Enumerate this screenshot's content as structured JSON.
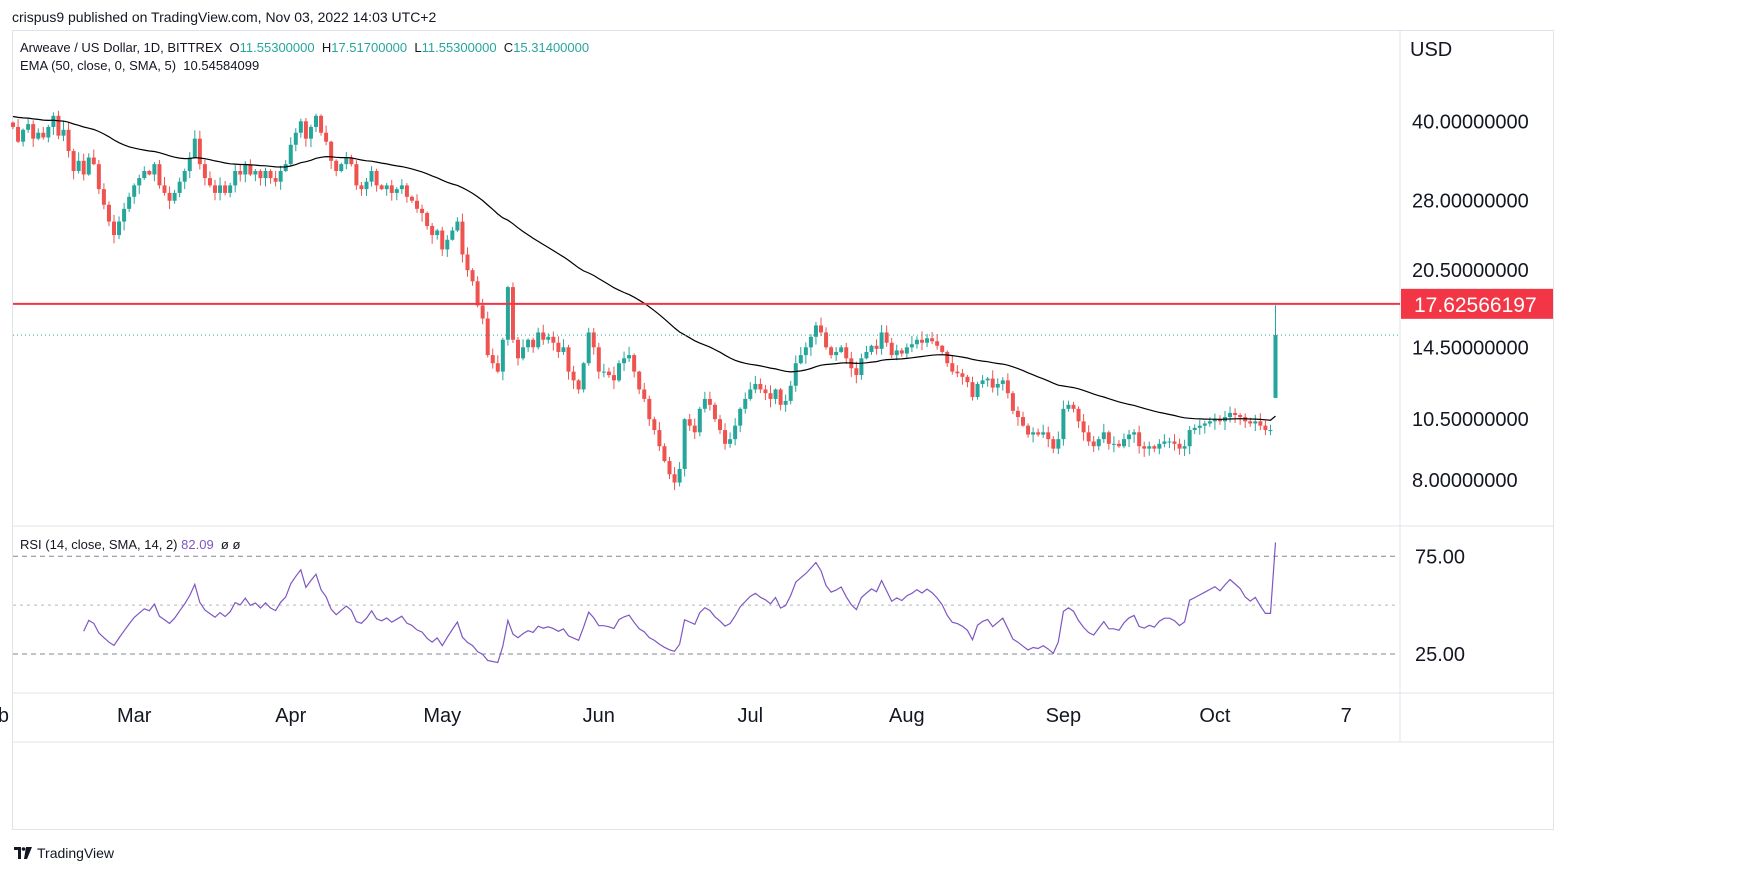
{
  "header": {
    "published": "crispus9 published on TradingView.com, Nov 03, 2022 14:03 UTC+2"
  },
  "legend": {
    "symbol": "Arweave / US Dollar, 1D, BITTREX",
    "o_key": "O",
    "o": "11.55300000",
    "h_key": "H",
    "h": "17.51700000",
    "l_key": "L",
    "l": "11.55300000",
    "c_key": "C",
    "c": "15.31400000",
    "ema_label": "EMA (50, close, 0, SMA, 5)",
    "ema_value": "10.54584099",
    "rsi_label": "RSI (14, close, SMA, 14, 2)",
    "rsi_value": "82.09",
    "rsi_extra": "ø ø"
  },
  "axis": {
    "currency": "USD",
    "price_ticks": [
      {
        "label": "40.00000000",
        "value": 40
      },
      {
        "label": "28.00000000",
        "value": 28
      },
      {
        "label": "20.50000000",
        "value": 20.5
      },
      {
        "label": "14.50000000",
        "value": 14.5
      },
      {
        "label": "10.50000000",
        "value": 10.5
      },
      {
        "label": "8.00000000",
        "value": 8
      }
    ],
    "rsi_ticks": [
      {
        "label": "75.00",
        "value": 75
      },
      {
        "label": "25.00",
        "value": 25
      }
    ],
    "time_ticks": [
      {
        "label": "eb",
        "index": -3
      },
      {
        "label": "Mar",
        "index": 24
      },
      {
        "label": "Apr",
        "index": 55
      },
      {
        "label": "May",
        "index": 85
      },
      {
        "label": "Jun",
        "index": 116
      },
      {
        "label": "Jul",
        "index": 146
      },
      {
        "label": "Aug",
        "index": 177
      },
      {
        "label": "Sep",
        "index": 208
      },
      {
        "label": "Oct",
        "index": 238
      },
      {
        "label": "7",
        "index": 264
      }
    ],
    "resistance_label": "17.62566197"
  },
  "footer": {
    "brand": "TradingView"
  },
  "colors": {
    "up": "#26a69a",
    "down": "#ef5350",
    "ema": "#000000",
    "rsi": "#7e57c2",
    "resistance": "#f23645"
  },
  "chart_data": {
    "type": "candlestick",
    "scale": "log",
    "series_name": "Arweave / US Dollar",
    "start_date": "2022-02-01",
    "interval": "1D",
    "price_ylim": [
      6.5,
      60
    ],
    "resistance": 17.62566197,
    "last_close": 15.314,
    "ema_period": 50,
    "rsi_period": 14,
    "rsi_ylim": [
      5,
      90
    ],
    "rsi_levels": [
      75,
      50,
      25
    ],
    "closes": [
      39.0,
      36.5,
      38.5,
      39.5,
      37.0,
      38.0,
      37.2,
      39.0,
      41.0,
      37.5,
      38.5,
      35.0,
      32.0,
      33.5,
      31.5,
      34.0,
      33.0,
      29.5,
      27.5,
      25.5,
      24.0,
      25.5,
      27.0,
      28.5,
      30.0,
      31.0,
      32.0,
      31.5,
      33.0,
      30.0,
      29.0,
      28.0,
      29.0,
      30.5,
      32.0,
      34.0,
      37.0,
      33.0,
      31.0,
      30.0,
      29.0,
      30.0,
      29.0,
      30.0,
      32.0,
      31.5,
      33.0,
      31.5,
      32.0,
      31.0,
      32.0,
      31.0,
      30.5,
      32.0,
      33.0,
      36.0,
      38.0,
      40.0,
      37.0,
      39.0,
      41.0,
      38.0,
      36.5,
      33.5,
      32.0,
      33.0,
      34.0,
      33.0,
      30.0,
      29.5,
      30.5,
      32.0,
      30.0,
      29.5,
      30.0,
      29.0,
      29.5,
      30.0,
      28.5,
      28.0,
      27.0,
      26.5,
      25.0,
      24.0,
      24.5,
      22.5,
      23.5,
      24.5,
      25.5,
      22.0,
      20.5,
      19.5,
      17.5,
      16.5,
      14.0,
      13.5,
      13.0,
      15.0,
      19.0,
      15.0,
      13.8,
      14.5,
      15.0,
      14.5,
      15.5,
      15.0,
      15.2,
      14.8,
      14.2,
      14.5,
      13.0,
      12.5,
      12.0,
      13.5,
      15.5,
      14.5,
      13.0,
      13.0,
      12.8,
      12.5,
      13.5,
      13.8,
      14.0,
      13.0,
      12.0,
      11.5,
      10.5,
      10.0,
      9.3,
      8.7,
      8.2,
      7.9,
      8.4,
      10.5,
      10.2,
      9.9,
      11.0,
      11.5,
      11.2,
      10.5,
      10.0,
      9.4,
      9.6,
      10.2,
      11.0,
      11.5,
      12.0,
      12.3,
      12.0,
      11.8,
      11.5,
      12.0,
      11.2,
      11.4,
      12.2,
      13.5,
      14.0,
      14.5,
      15.2,
      16.0,
      15.5,
      14.5,
      14.0,
      14.2,
      14.5,
      13.8,
      13.2,
      12.8,
      13.8,
      14.2,
      14.6,
      14.4,
      15.5,
      14.8,
      14.0,
      14.3,
      14.1,
      14.5,
      14.7,
      15.0,
      14.8,
      15.1,
      14.9,
      14.6,
      14.2,
      13.5,
      13.0,
      12.9,
      12.7,
      12.4,
      11.6,
      12.3,
      12.5,
      12.6,
      12.1,
      12.3,
      12.5,
      11.8,
      10.9,
      10.6,
      10.2,
      9.8,
      9.9,
      9.8,
      9.9,
      9.6,
      9.2,
      9.6,
      11.0,
      11.2,
      11.0,
      10.4,
      9.9,
      9.5,
      9.3,
      9.6,
      9.9,
      9.4,
      9.4,
      9.3,
      9.6,
      9.8,
      9.9,
      9.3,
      9.2,
      9.3,
      9.2,
      9.4,
      9.5,
      9.5,
      9.4,
      9.2,
      9.3,
      10.0,
      10.1,
      10.2,
      10.3,
      10.4,
      10.5,
      10.4,
      10.6,
      10.8,
      10.7,
      10.6,
      10.4,
      10.3,
      10.4,
      10.2,
      10.0,
      10.0,
      15.314
    ],
    "last_candle": {
      "open": 11.553,
      "high": 17.517,
      "low": 11.553,
      "close": 15.314
    }
  }
}
